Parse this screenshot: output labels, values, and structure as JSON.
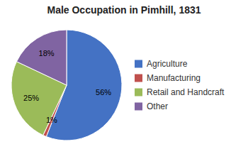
{
  "chart_data": {
    "type": "pie",
    "title": "Male Occupation in Pimhill, 1831",
    "categories": [
      "Agriculture",
      "Manufacturing",
      "Retail and Handcraft",
      "Other"
    ],
    "values": [
      56,
      1,
      25,
      18
    ],
    "value_labels": [
      "56%",
      "1%",
      "25%",
      "18%"
    ],
    "colors": [
      "#4472C4",
      "#C0504D",
      "#9BBB59",
      "#8064A2"
    ],
    "data_labels": true,
    "legend": "right"
  }
}
